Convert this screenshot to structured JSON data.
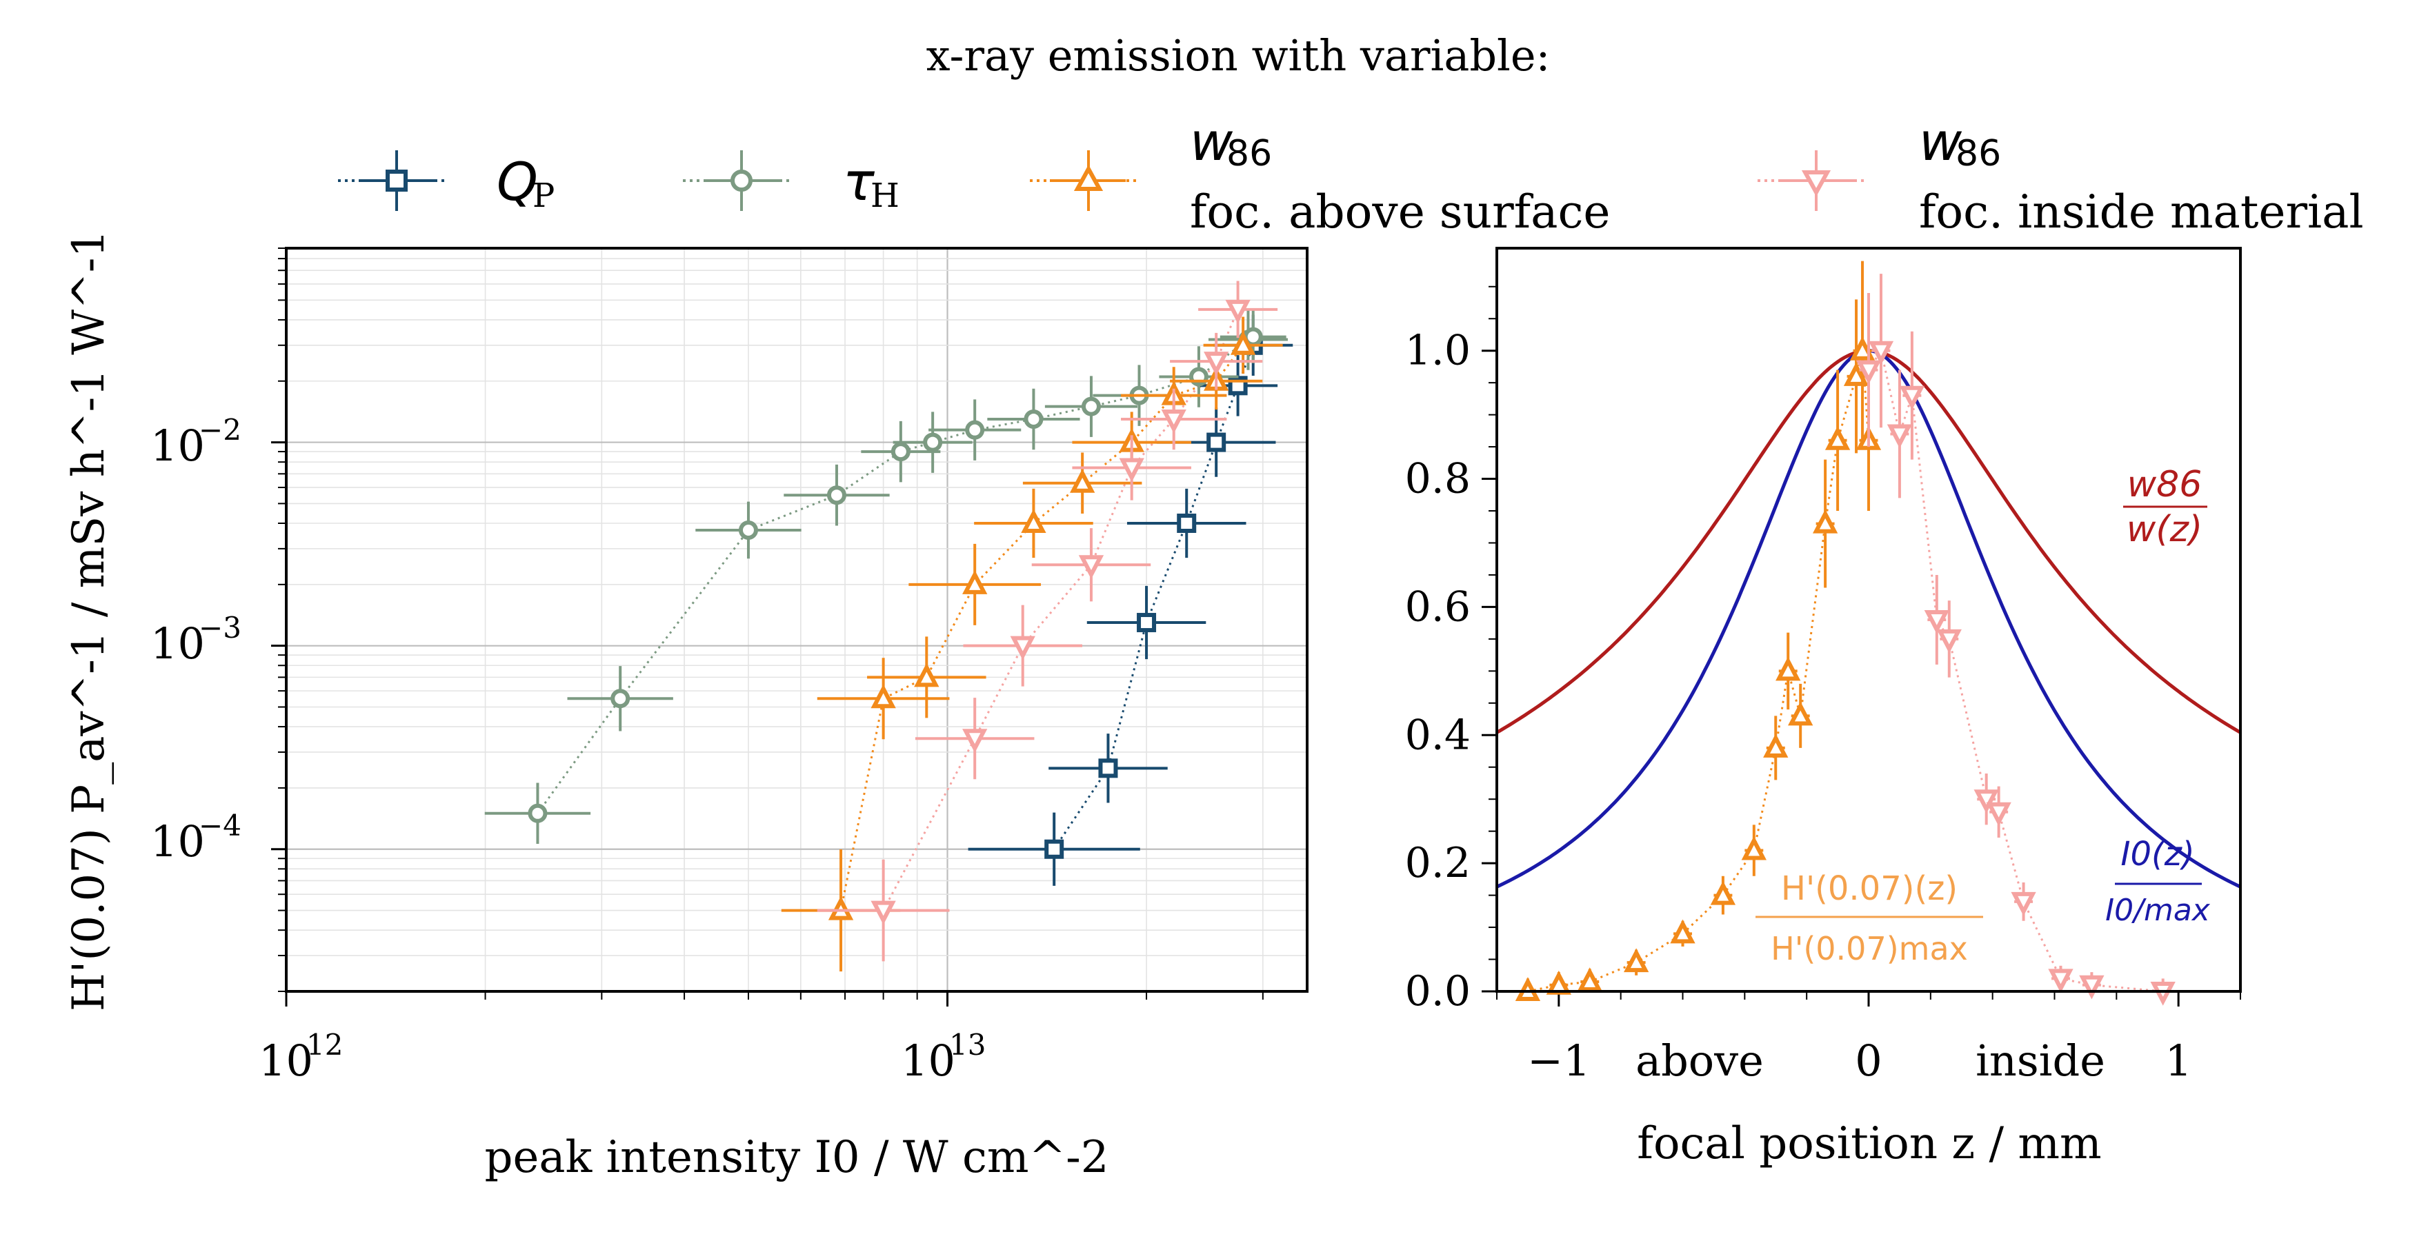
{
  "figure_title": "x-ray emission with variable:",
  "legend": [
    {
      "key": "qp",
      "label": "Q",
      "label_sub": "P",
      "marker": "square",
      "color": "#184a6e"
    },
    {
      "key": "tauh",
      "label": "τ",
      "label_sub": "H",
      "marker": "circle",
      "color": "#7c9a82"
    },
    {
      "key": "w86_above",
      "label": "w",
      "label_sub": "86",
      "label2": "foc. above surface",
      "marker": "triangle-up",
      "color": "#f28a1a"
    },
    {
      "key": "w86_inside",
      "label": "w",
      "label_sub": "86",
      "label2": "foc. inside material",
      "marker": "triangle-down",
      "color": "#f5a3a1"
    }
  ],
  "chart_data": [
    {
      "type": "scatter",
      "panel": "left",
      "title": "",
      "xlabel": "peak intensity I0 / W cm^-2",
      "ylabel": "H'(0.07) P_av^-1 / mSv h^-1 W^-1",
      "xscale": "log",
      "yscale": "log",
      "xlim": [
        1000000000000.0,
        35000000000000.0
      ],
      "ylim": [
        2e-05,
        0.09
      ],
      "x_tick_labels": [
        "10",
        "10"
      ],
      "x_tick_exps": [
        "12",
        "13"
      ],
      "y_tick_labels": [
        "10",
        "10",
        "10"
      ],
      "y_tick_exps": [
        "−4",
        "−3",
        "−2"
      ],
      "grid": true,
      "series": [
        {
          "name": "Q_P",
          "key": "qp",
          "points": [
            {
              "x": 14500000000000.0,
              "y": 0.0001,
              "xerr": 0.13,
              "yerr": 0.18
            },
            {
              "x": 17500000000000.0,
              "y": 0.00025,
              "xerr": 0.09,
              "yerr": 0.17
            },
            {
              "x": 20000000000000.0,
              "y": 0.0013,
              "xerr": 0.09,
              "yerr": 0.18
            },
            {
              "x": 23000000000000.0,
              "y": 0.004,
              "xerr": 0.09,
              "yerr": 0.17
            },
            {
              "x": 25500000000000.0,
              "y": 0.01,
              "xerr": 0.09,
              "yerr": 0.17
            },
            {
              "x": 27500000000000.0,
              "y": 0.019,
              "xerr": 0.06,
              "yerr": 0.15
            },
            {
              "x": 29000000000000.0,
              "y": 0.03,
              "xerr": 0.06,
              "yerr": 0.15
            }
          ]
        },
        {
          "name": "tau_H",
          "key": "tauh",
          "points": [
            {
              "x": 2400000000000.0,
              "y": 0.00015,
              "xerr": 0.08,
              "yerr": 0.15
            },
            {
              "x": 3200000000000.0,
              "y": 0.00055,
              "xerr": 0.08,
              "yerr": 0.16
            },
            {
              "x": 5000000000000.0,
              "y": 0.0037,
              "xerr": 0.08,
              "yerr": 0.14
            },
            {
              "x": 6800000000000.0,
              "y": 0.0055,
              "xerr": 0.08,
              "yerr": 0.15
            },
            {
              "x": 8500000000000.0,
              "y": 0.009,
              "xerr": 0.06,
              "yerr": 0.15
            },
            {
              "x": 9500000000000.0,
              "y": 0.01,
              "xerr": 0.06,
              "yerr": 0.15
            },
            {
              "x": 11000000000000.0,
              "y": 0.0115,
              "xerr": 0.07,
              "yerr": 0.15
            },
            {
              "x": 13500000000000.0,
              "y": 0.013,
              "xerr": 0.07,
              "yerr": 0.15
            },
            {
              "x": 16500000000000.0,
              "y": 0.015,
              "xerr": 0.07,
              "yerr": 0.15
            },
            {
              "x": 19500000000000.0,
              "y": 0.017,
              "xerr": 0.07,
              "yerr": 0.15
            },
            {
              "x": 24000000000000.0,
              "y": 0.021,
              "xerr": 0.06,
              "yerr": 0.15
            },
            {
              "x": 28500000000000.0,
              "y": 0.032,
              "xerr": 0.06,
              "yerr": 0.15
            },
            {
              "x": 29000000000000.0,
              "y": 0.033,
              "xerr": 0.05,
              "yerr": 0.13
            }
          ]
        },
        {
          "name": "w86 foc. above surface",
          "key": "w86_above",
          "points": [
            {
              "x": 6900000000000.0,
              "y": 5e-05,
              "xerr": 0.09,
              "yerr": 0.3
            },
            {
              "x": 8000000000000.0,
              "y": 0.00055,
              "xerr": 0.1,
              "yerr": 0.2
            },
            {
              "x": 9300000000000.0,
              "y": 0.0007,
              "xerr": 0.09,
              "yerr": 0.2
            },
            {
              "x": 11000000000000.0,
              "y": 0.002,
              "xerr": 0.1,
              "yerr": 0.2
            },
            {
              "x": 13500000000000.0,
              "y": 0.004,
              "xerr": 0.09,
              "yerr": 0.17
            },
            {
              "x": 16000000000000.0,
              "y": 0.0063,
              "xerr": 0.09,
              "yerr": 0.15
            },
            {
              "x": 19000000000000.0,
              "y": 0.01,
              "xerr": 0.09,
              "yerr": 0.15
            },
            {
              "x": 22000000000000.0,
              "y": 0.017,
              "xerr": 0.08,
              "yerr": 0.14
            },
            {
              "x": 25500000000000.0,
              "y": 0.02,
              "xerr": 0.07,
              "yerr": 0.14
            },
            {
              "x": 28000000000000.0,
              "y": 0.03,
              "xerr": 0.06,
              "yerr": 0.14
            }
          ]
        },
        {
          "name": "w86 foc. inside material",
          "key": "w86_inside",
          "points": [
            {
              "x": 8000000000000.0,
              "y": 5e-05,
              "xerr": 0.1,
              "yerr": 0.25
            },
            {
              "x": 11000000000000.0,
              "y": 0.00035,
              "xerr": 0.09,
              "yerr": 0.2
            },
            {
              "x": 13000000000000.0,
              "y": 0.001,
              "xerr": 0.09,
              "yerr": 0.2
            },
            {
              "x": 16500000000000.0,
              "y": 0.0025,
              "xerr": 0.09,
              "yerr": 0.18
            },
            {
              "x": 19000000000000.0,
              "y": 0.0075,
              "xerr": 0.09,
              "yerr": 0.16
            },
            {
              "x": 22000000000000.0,
              "y": 0.013,
              "xerr": 0.08,
              "yerr": 0.15
            },
            {
              "x": 25500000000000.0,
              "y": 0.025,
              "xerr": 0.07,
              "yerr": 0.14
            },
            {
              "x": 27500000000000.0,
              "y": 0.045,
              "xerr": 0.06,
              "yerr": 0.14
            }
          ]
        }
      ]
    },
    {
      "type": "line",
      "panel": "right",
      "title": "",
      "xlabel": "focal position z / mm",
      "ylabel": "",
      "xlim": [
        -1.2,
        1.2
      ],
      "ylim": [
        0.0,
        1.16
      ],
      "x_ticks": [
        -1,
        0,
        1
      ],
      "x_tick_labels": [
        "−1",
        "0",
        "1"
      ],
      "y_ticks": [
        0.0,
        0.2,
        0.4,
        0.6,
        0.8,
        1.0
      ],
      "y_tick_labels": [
        "0.0",
        "0.2",
        "0.4",
        "0.6",
        "0.8",
        "1.0"
      ],
      "x_region_labels": [
        "above",
        "inside"
      ],
      "grid": false,
      "curves": [
        {
          "name": "w86 / w(z)",
          "label_num": "w86",
          "label_den": "w(z)",
          "color": "#b01c1c",
          "rayleigh_range_mm": 0.53,
          "function": "1/sqrt(1+(z/zR)^2)"
        },
        {
          "name": "I0(z) / I0/max",
          "label_num": "I0(z)",
          "label_den": "I0/max",
          "color": "#1a1aa8",
          "rayleigh_range_mm": 0.53,
          "function": "1/(1+(z/zR)^2)"
        }
      ],
      "series": [
        {
          "name": "H'(0.07)(z)/H'(0.07)max above",
          "key": "w86_above",
          "label_num": "H'(0.07)(z)",
          "label_den": "H'(0.07)max",
          "points": [
            {
              "x": -1.1,
              "y": 0.0,
              "xerr": 0.03,
              "yerr": 0.02
            },
            {
              "x": -1.0,
              "y": 0.01,
              "xerr": 0.03,
              "yerr": 0.02
            },
            {
              "x": -0.9,
              "y": 0.015,
              "xerr": 0.03,
              "yerr": 0.02
            },
            {
              "x": -0.75,
              "y": 0.045,
              "xerr": 0.03,
              "yerr": 0.02
            },
            {
              "x": -0.6,
              "y": 0.09,
              "xerr": 0.03,
              "yerr": 0.02
            },
            {
              "x": -0.47,
              "y": 0.15,
              "xerr": 0.03,
              "yerr": 0.03
            },
            {
              "x": -0.37,
              "y": 0.22,
              "xerr": 0.03,
              "yerr": 0.04
            },
            {
              "x": -0.3,
              "y": 0.38,
              "xerr": 0.03,
              "yerr": 0.05
            },
            {
              "x": -0.26,
              "y": 0.5,
              "xerr": 0.03,
              "yerr": 0.06
            },
            {
              "x": -0.22,
              "y": 0.43,
              "xerr": 0.03,
              "yerr": 0.05
            },
            {
              "x": -0.14,
              "y": 0.73,
              "xerr": 0.03,
              "yerr": 0.1
            },
            {
              "x": -0.1,
              "y": 0.86,
              "xerr": 0.03,
              "yerr": 0.11
            },
            {
              "x": -0.04,
              "y": 0.96,
              "xerr": 0.03,
              "yerr": 0.12
            },
            {
              "x": -0.02,
              "y": 1.0,
              "xerr": 0.03,
              "yerr": 0.14
            },
            {
              "x": 0.0,
              "y": 0.86,
              "xerr": 0.03,
              "yerr": 0.11
            }
          ]
        },
        {
          "name": "H'(0.07)(z)/H'(0.07)max inside",
          "key": "w86_inside",
          "points": [
            {
              "x": 0.0,
              "y": 0.97,
              "xerr": 0.03,
              "yerr": 0.12
            },
            {
              "x": 0.04,
              "y": 1.0,
              "xerr": 0.03,
              "yerr": 0.12
            },
            {
              "x": 0.1,
              "y": 0.87,
              "xerr": 0.03,
              "yerr": 0.1
            },
            {
              "x": 0.14,
              "y": 0.93,
              "xerr": 0.03,
              "yerr": 0.1
            },
            {
              "x": 0.22,
              "y": 0.58,
              "xerr": 0.03,
              "yerr": 0.07
            },
            {
              "x": 0.26,
              "y": 0.55,
              "xerr": 0.03,
              "yerr": 0.06
            },
            {
              "x": 0.38,
              "y": 0.3,
              "xerr": 0.03,
              "yerr": 0.04
            },
            {
              "x": 0.42,
              "y": 0.28,
              "xerr": 0.03,
              "yerr": 0.04
            },
            {
              "x": 0.5,
              "y": 0.14,
              "xerr": 0.03,
              "yerr": 0.03
            },
            {
              "x": 0.62,
              "y": 0.02,
              "xerr": 0.03,
              "yerr": 0.02
            },
            {
              "x": 0.72,
              "y": 0.01,
              "xerr": 0.03,
              "yerr": 0.02
            },
            {
              "x": 0.95,
              "y": 0.0,
              "xerr": 0.03,
              "yerr": 0.02
            }
          ]
        }
      ]
    }
  ]
}
